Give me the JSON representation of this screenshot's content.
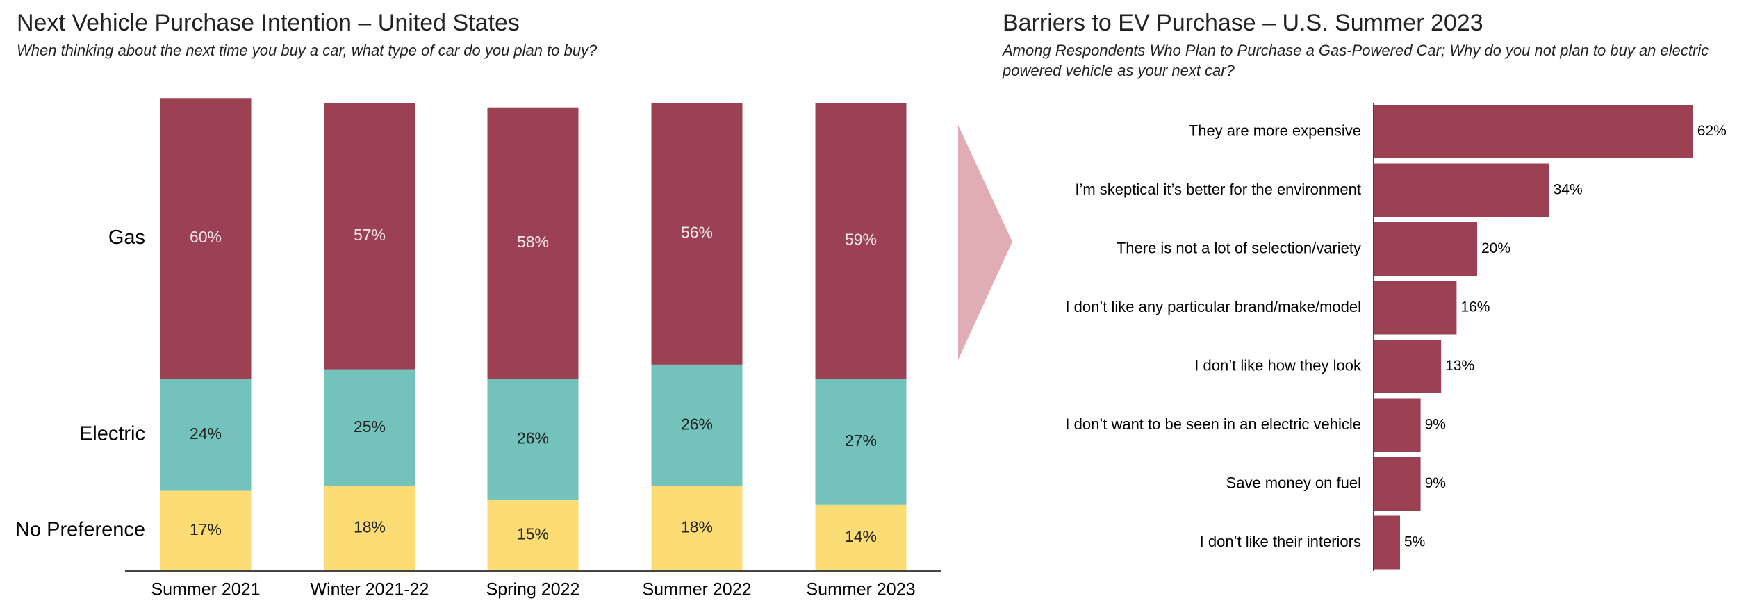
{
  "chart_data": [
    {
      "type": "stacked_bar",
      "title": "Next Vehicle Purchase Intention – United States",
      "subtitle": "When thinking about the next time you buy a car, what type of car do you plan to buy?",
      "categories": [
        "Summer 2021",
        "Winter 2021-22",
        "Spring 2022",
        "Summer 2022",
        "Summer 2023"
      ],
      "series": [
        {
          "name": "No Preference",
          "color": "#fcdc74",
          "values": [
            17,
            18,
            15,
            18,
            14
          ],
          "value_labels": [
            "17%",
            "18%",
            "15%",
            "18%",
            "14%"
          ]
        },
        {
          "name": "Electric",
          "color": "#74c2bc",
          "values": [
            24,
            25,
            26,
            26,
            27
          ],
          "value_labels": [
            "24%",
            "25%",
            "26%",
            "26%",
            "27%"
          ]
        },
        {
          "name": "Gas",
          "color": "#9c4153",
          "values": [
            60,
            57,
            58,
            56,
            59
          ],
          "value_labels": [
            "60%",
            "57%",
            "58%",
            "56%",
            "59%"
          ]
        }
      ]
    },
    {
      "type": "bar",
      "horizontal": true,
      "title": "Barriers to EV Purchase – U.S. Summer 2023",
      "subtitle": "Among Respondents Who Plan to Purchase a Gas-Powered Car; Why do you not plan to buy an electric powered vehicle as your next car?",
      "categories": [
        "They are more expensive",
        "I’m skeptical it’s better for the environment",
        "There is not a lot of selection/variety",
        "I don’t like any particular brand/make/model",
        "I don’t like how they look",
        "I don’t want to be seen in an electric vehicle",
        "Save money on fuel",
        "I don’t like their interiors"
      ],
      "values": [
        62,
        34,
        20,
        16,
        13,
        9,
        9,
        5
      ],
      "value_labels": [
        "62%",
        "34%",
        "20%",
        "16%",
        "13%",
        "9%",
        "9%",
        "5%"
      ],
      "color": "#9c4153"
    }
  ]
}
